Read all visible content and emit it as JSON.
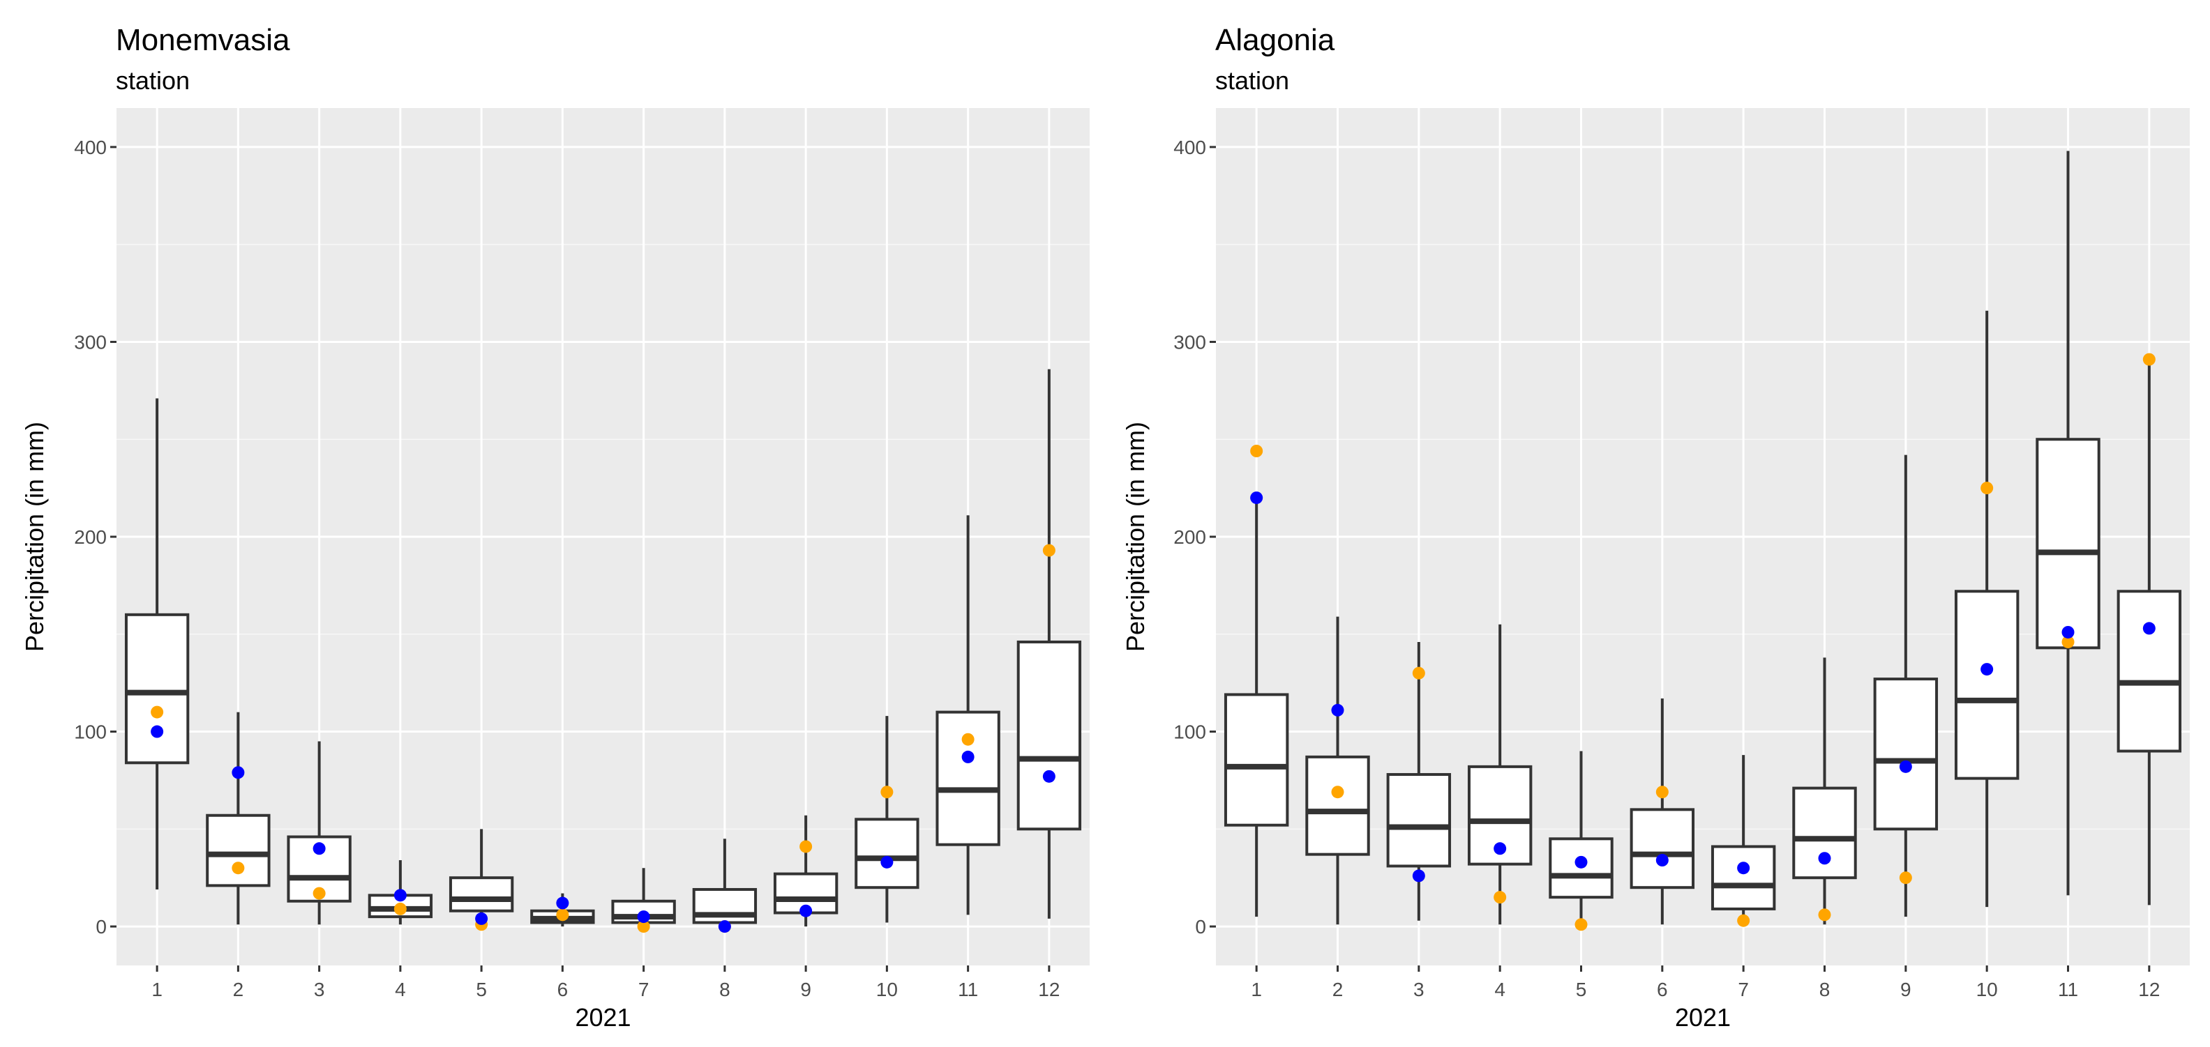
{
  "colors": {
    "panel_bg": "#EBEBEB",
    "grid_major": "#FFFFFF",
    "box_line": "#333333",
    "box_fill": "#FFFFFF",
    "point_blue": "#0000FF",
    "point_orange": "#FFA500",
    "tick": "#4D4D4D"
  },
  "chart_data": [
    {
      "type": "boxplot",
      "title": "Monemvasia",
      "subtitle": "station",
      "xlabel": "2021",
      "ylabel": "Percipitation (in mm)",
      "ylim": [
        -20,
        420
      ],
      "yticks": [
        0,
        100,
        200,
        300,
        400
      ],
      "categories": [
        "1",
        "2",
        "3",
        "4",
        "5",
        "6",
        "7",
        "8",
        "9",
        "10",
        "11",
        "12"
      ],
      "boxes": [
        {
          "min": 19,
          "q1": 84,
          "median": 120,
          "q3": 160,
          "max": 271
        },
        {
          "min": 1,
          "q1": 21,
          "median": 37,
          "q3": 57,
          "max": 110
        },
        {
          "min": 1,
          "q1": 13,
          "median": 25,
          "q3": 46,
          "max": 95
        },
        {
          "min": 1,
          "q1": 5,
          "median": 9,
          "q3": 16,
          "max": 34
        },
        {
          "min": 1,
          "q1": 8,
          "median": 14,
          "q3": 25,
          "max": 50
        },
        {
          "min": 0,
          "q1": 2,
          "median": 4,
          "q3": 8,
          "max": 17
        },
        {
          "min": 0,
          "q1": 2,
          "median": 5,
          "q3": 13,
          "max": 30
        },
        {
          "min": 0,
          "q1": 2,
          "median": 6,
          "q3": 19,
          "max": 45
        },
        {
          "min": 0,
          "q1": 7,
          "median": 14,
          "q3": 27,
          "max": 57
        },
        {
          "min": 2,
          "q1": 20,
          "median": 35,
          "q3": 55,
          "max": 108
        },
        {
          "min": 6,
          "q1": 42,
          "median": 70,
          "q3": 110,
          "max": 211
        },
        {
          "min": 4,
          "q1": 50,
          "median": 86,
          "q3": 146,
          "max": 286
        }
      ],
      "series": [
        {
          "name": "blue",
          "color": "#0000FF",
          "values": [
            100,
            79,
            40,
            16,
            4,
            12,
            5,
            0,
            8,
            33,
            87,
            77
          ]
        },
        {
          "name": "orange",
          "color": "#FFA500",
          "values": [
            110,
            30,
            17,
            9,
            1,
            6,
            0,
            0,
            41,
            69,
            96,
            193
          ]
        }
      ]
    },
    {
      "type": "boxplot",
      "title": "Alagonia",
      "subtitle": "station",
      "xlabel": "2021",
      "ylabel": "Percipitation (in mm)",
      "ylim": [
        -20,
        420
      ],
      "yticks": [
        0,
        100,
        200,
        300,
        400
      ],
      "categories": [
        "1",
        "2",
        "3",
        "4",
        "5",
        "6",
        "7",
        "8",
        "9",
        "10",
        "11",
        "12"
      ],
      "boxes": [
        {
          "min": 5,
          "q1": 52,
          "median": 82,
          "q3": 119,
          "max": 220
        },
        {
          "min": 1,
          "q1": 37,
          "median": 59,
          "q3": 87,
          "max": 159
        },
        {
          "min": 3,
          "q1": 31,
          "median": 51,
          "q3": 78,
          "max": 146
        },
        {
          "min": 1,
          "q1": 32,
          "median": 54,
          "q3": 82,
          "max": 155
        },
        {
          "min": 1,
          "q1": 15,
          "median": 26,
          "q3": 45,
          "max": 90
        },
        {
          "min": 1,
          "q1": 20,
          "median": 37,
          "q3": 60,
          "max": 117
        },
        {
          "min": 1,
          "q1": 9,
          "median": 21,
          "q3": 41,
          "max": 88
        },
        {
          "min": 1,
          "q1": 25,
          "median": 45,
          "q3": 71,
          "max": 138
        },
        {
          "min": 5,
          "q1": 50,
          "median": 85,
          "q3": 127,
          "max": 242
        },
        {
          "min": 10,
          "q1": 76,
          "median": 116,
          "q3": 172,
          "max": 316
        },
        {
          "min": 16,
          "q1": 143,
          "median": 192,
          "q3": 250,
          "max": 398
        },
        {
          "min": 11,
          "q1": 90,
          "median": 125,
          "q3": 172,
          "max": 294
        }
      ],
      "series": [
        {
          "name": "blue",
          "color": "#0000FF",
          "values": [
            220,
            111,
            26,
            40,
            33,
            34,
            30,
            35,
            82,
            132,
            151,
            153
          ]
        },
        {
          "name": "orange",
          "color": "#FFA500",
          "values": [
            244,
            69,
            130,
            15,
            1,
            69,
            3,
            6,
            25,
            225,
            146,
            291
          ]
        }
      ]
    }
  ]
}
